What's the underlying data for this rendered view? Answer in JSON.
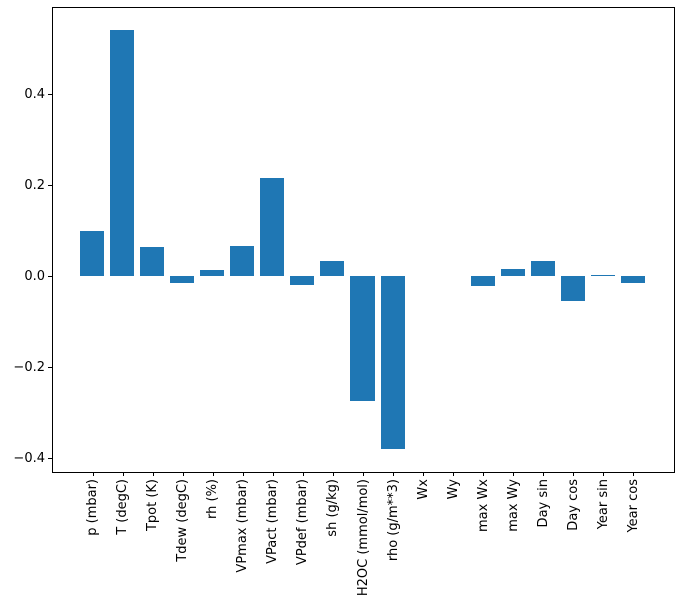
{
  "chart_data": {
    "type": "bar",
    "title": "",
    "xlabel": "",
    "ylabel": "",
    "grid": false,
    "legend": null,
    "bar_color": "#1f77b4",
    "spine_color": "#000000",
    "background_color": "#ffffff",
    "bar_width": 0.8,
    "xlim": [
      -1.34,
      19.34
    ],
    "ylim": [
      -0.4286,
      0.5912
    ],
    "yticks": [
      0.4,
      0.2,
      0.0,
      -0.2,
      -0.4
    ],
    "ytick_labels": [
      "0.4",
      "0.2",
      "0.0",
      "−0.2",
      "−0.4"
    ],
    "categories": [
      "p (mbar)",
      "T (degC)",
      "Tpot (K)",
      "Tdew (degC)",
      "rh (%)",
      "VPmax (mbar)",
      "VPact (mbar)",
      "VPdef (mbar)",
      "sh (g/kg)",
      "H2OC (mmol/mol)",
      "rho (g/m**3)",
      "Wx",
      "Wy",
      "max Wx",
      "max Wy",
      "Day sin",
      "Day cos",
      "Year sin",
      "Year cos"
    ],
    "values": [
      0.098,
      0.541,
      0.063,
      -0.015,
      0.013,
      0.065,
      0.215,
      -0.019,
      0.034,
      -0.274,
      -0.38,
      0.0,
      0.0,
      -0.021,
      0.015,
      0.032,
      -0.055,
      0.003,
      -0.015
    ]
  }
}
